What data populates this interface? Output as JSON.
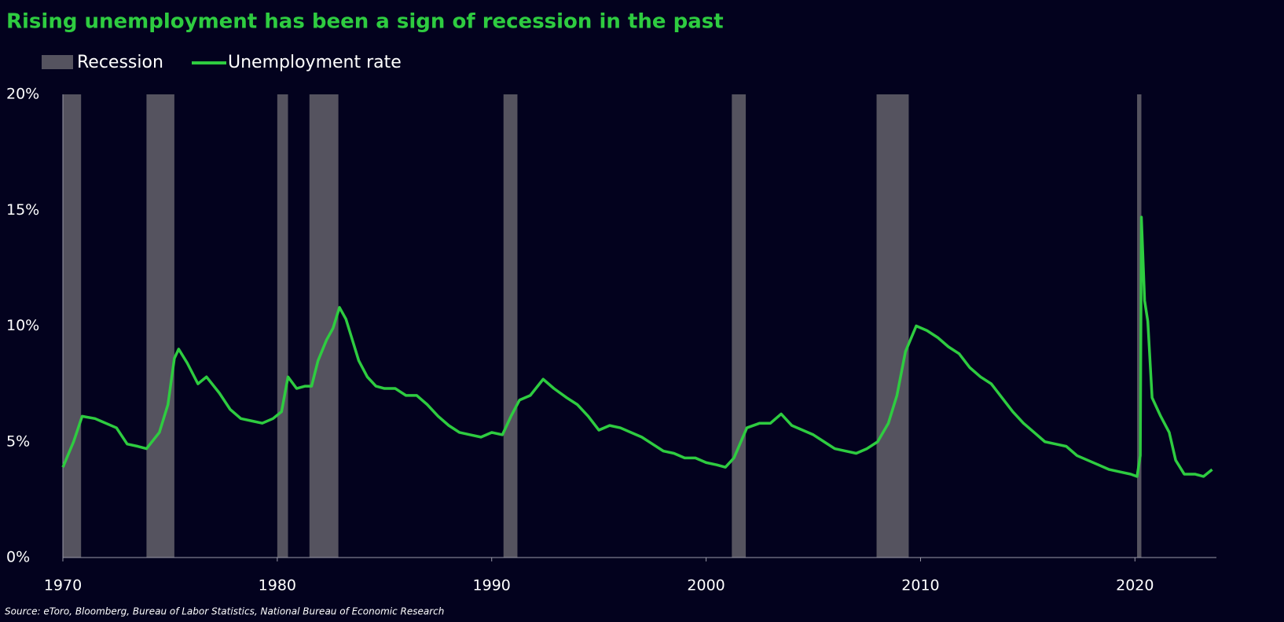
{
  "chart_data": {
    "type": "line",
    "title": "Rising unemployment has been a sign of recession in the past",
    "source": "Source: eToro, Bloomberg, Bureau of Labor Statistics, National Bureau of Economic Research",
    "xlim": [
      1970,
      2023.8
    ],
    "xticks": [
      1970,
      1980,
      1990,
      2000,
      2010,
      2020
    ],
    "ylim": [
      0,
      20
    ],
    "yticks": [
      {
        "value": 0,
        "label": "0%"
      },
      {
        "value": 5,
        "label": "5%"
      },
      {
        "value": 10,
        "label": "10%"
      },
      {
        "value": 15,
        "label": "15%"
      },
      {
        "value": 20,
        "label": "20%"
      }
    ],
    "recessions": {
      "name": "Recession",
      "color": "#55535f",
      "ranges": [
        [
          1970.0,
          1970.85
        ],
        [
          1973.9,
          1975.2
        ],
        [
          1980.0,
          1980.5
        ],
        [
          1981.5,
          1982.85
        ],
        [
          1990.55,
          1991.2
        ],
        [
          2001.2,
          2001.85
        ],
        [
          2007.95,
          2009.45
        ],
        [
          2020.1,
          2020.3
        ]
      ]
    },
    "series": [
      {
        "name": "Unemployment rate",
        "color": "#2ecc40",
        "x": [
          1970.0,
          1970.5,
          1970.9,
          1971.5,
          1972.0,
          1972.5,
          1973.0,
          1973.5,
          1973.9,
          1974.5,
          1974.9,
          1975.2,
          1975.4,
          1975.8,
          1976.3,
          1976.7,
          1977.3,
          1977.8,
          1978.3,
          1978.8,
          1979.3,
          1979.8,
          1980.2,
          1980.5,
          1980.9,
          1981.3,
          1981.6,
          1981.9,
          1982.3,
          1982.6,
          1982.9,
          1983.2,
          1983.5,
          1983.8,
          1984.2,
          1984.6,
          1985.0,
          1985.5,
          1986.0,
          1986.5,
          1987.0,
          1987.5,
          1988.0,
          1988.5,
          1989.0,
          1989.5,
          1990.0,
          1990.5,
          1990.9,
          1991.3,
          1991.8,
          1992.4,
          1992.9,
          1993.5,
          1994.0,
          1994.5,
          1995.0,
          1995.5,
          1996.0,
          1996.5,
          1997.0,
          1997.5,
          1998.0,
          1998.5,
          1999.0,
          1999.5,
          2000.0,
          2000.5,
          2000.9,
          2001.3,
          2001.9,
          2002.5,
          2003.0,
          2003.5,
          2004.0,
          2004.5,
          2005.0,
          2005.5,
          2006.0,
          2006.5,
          2007.0,
          2007.5,
          2008.0,
          2008.5,
          2008.9,
          2009.3,
          2009.8,
          2010.3,
          2010.8,
          2011.3,
          2011.8,
          2012.3,
          2012.8,
          2013.3,
          2013.8,
          2014.3,
          2014.8,
          2015.3,
          2015.8,
          2016.3,
          2016.8,
          2017.3,
          2017.8,
          2018.3,
          2018.8,
          2019.3,
          2019.8,
          2020.1,
          2020.25,
          2020.3,
          2020.45,
          2020.6,
          2020.8,
          2021.2,
          2021.6,
          2021.9,
          2022.3,
          2022.8,
          2023.2,
          2023.6
        ],
        "values": [
          3.9,
          5.0,
          6.1,
          6.0,
          5.8,
          5.6,
          4.9,
          4.8,
          4.7,
          5.4,
          6.6,
          8.6,
          9.0,
          8.4,
          7.5,
          7.8,
          7.1,
          6.4,
          6.0,
          5.9,
          5.8,
          6.0,
          6.3,
          7.8,
          7.3,
          7.4,
          7.4,
          8.5,
          9.4,
          9.9,
          10.8,
          10.3,
          9.4,
          8.5,
          7.8,
          7.4,
          7.3,
          7.3,
          7.0,
          7.0,
          6.6,
          6.1,
          5.7,
          5.4,
          5.3,
          5.2,
          5.4,
          5.3,
          6.1,
          6.8,
          7.0,
          7.7,
          7.3,
          6.9,
          6.6,
          6.1,
          5.5,
          5.7,
          5.6,
          5.4,
          5.2,
          4.9,
          4.6,
          4.5,
          4.3,
          4.3,
          4.1,
          4.0,
          3.9,
          4.3,
          5.6,
          5.8,
          5.8,
          6.2,
          5.7,
          5.5,
          5.3,
          5.0,
          4.7,
          4.6,
          4.5,
          4.7,
          5.0,
          5.8,
          7.0,
          8.9,
          10.0,
          9.8,
          9.5,
          9.1,
          8.8,
          8.2,
          7.8,
          7.5,
          6.9,
          6.3,
          5.8,
          5.4,
          5.0,
          4.9,
          4.8,
          4.4,
          4.2,
          4.0,
          3.8,
          3.7,
          3.6,
          3.5,
          4.4,
          14.7,
          11.1,
          10.2,
          6.9,
          6.1,
          5.4,
          4.2,
          3.6,
          3.6,
          3.5,
          3.8
        ]
      }
    ]
  }
}
